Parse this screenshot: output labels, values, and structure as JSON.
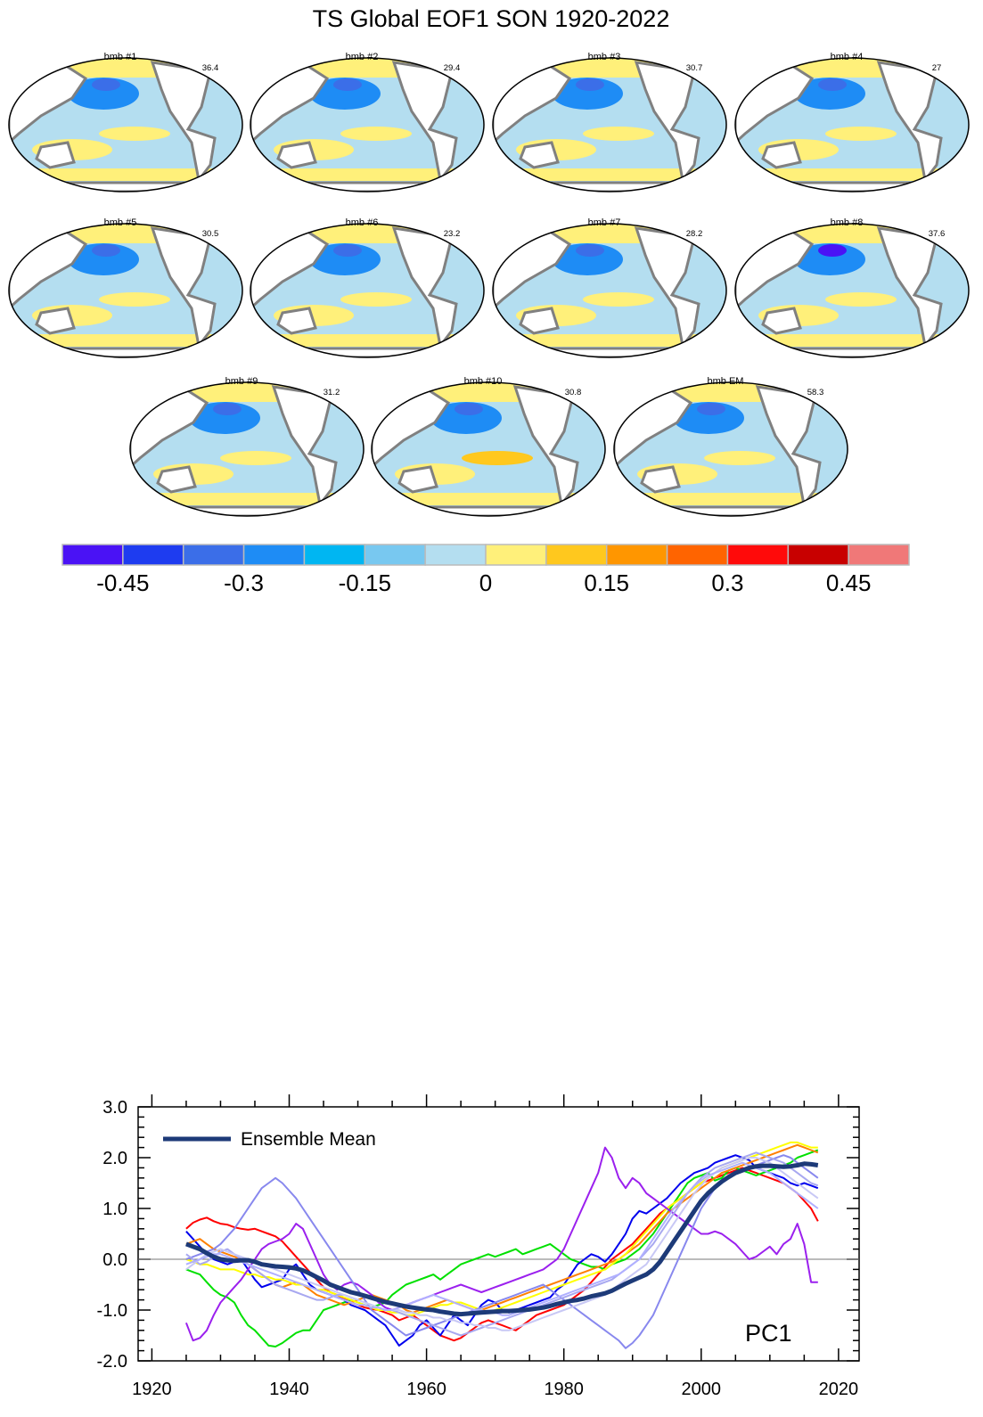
{
  "title": "TS Global EOF1 SON 1920-2022",
  "panels": [
    {
      "label": "bmb #1",
      "pct": "36.4"
    },
    {
      "label": "bmb #2",
      "pct": "29.4"
    },
    {
      "label": "bmb #3",
      "pct": "30.7"
    },
    {
      "label": "bmb #4",
      "pct": "27"
    },
    {
      "label": "bmb #5",
      "pct": "30.5"
    },
    {
      "label": "bmb #6",
      "pct": "23.2"
    },
    {
      "label": "bmb #7",
      "pct": "28.2"
    },
    {
      "label": "bmb #8",
      "pct": "37.6"
    },
    {
      "label": "bmb #9",
      "pct": "31.2"
    },
    {
      "label": "bmb #10",
      "pct": "30.8"
    },
    {
      "label": "bmb EM",
      "pct": "58.3"
    }
  ],
  "colorbar": {
    "colors": [
      "#4a12f5",
      "#1e3cf0",
      "#3b6ee8",
      "#1e8cf5",
      "#00b6f2",
      "#78c8f0",
      "#b4def0",
      "#fff07a",
      "#ffc81e",
      "#ff9600",
      "#ff6400",
      "#ff0a0a",
      "#c80000",
      "#f07878"
    ],
    "labels": [
      "-0.45",
      "-0.3",
      "-0.15",
      "0",
      "0.15",
      "0.3",
      "0.45"
    ]
  },
  "chart_data": {
    "type": "line",
    "title": "",
    "annotation": "PC1",
    "xlim": [
      1918,
      2023
    ],
    "ylim": [
      -2.0,
      3.0
    ],
    "xticks": [
      "1920",
      "1940",
      "1960",
      "1980",
      "2000",
      "2020"
    ],
    "yticks": [
      "-2.0",
      "-1.0",
      "0.0",
      "1.0",
      "2.0",
      "3.0"
    ],
    "legend": {
      "entry": "Ensemble Mean",
      "placement": "top-left"
    },
    "zero_line": true,
    "x": [
      1925,
      1926,
      1927,
      1928,
      1929,
      1930,
      1931,
      1932,
      1933,
      1934,
      1935,
      1936,
      1937,
      1938,
      1939,
      1940,
      1941,
      1942,
      1943,
      1944,
      1945,
      1946,
      1947,
      1948,
      1949,
      1950,
      1951,
      1952,
      1953,
      1954,
      1955,
      1956,
      1957,
      1958,
      1959,
      1960,
      1961,
      1962,
      1963,
      1964,
      1965,
      1966,
      1967,
      1968,
      1969,
      1970,
      1971,
      1972,
      1973,
      1974,
      1975,
      1976,
      1977,
      1978,
      1979,
      1980,
      1981,
      1982,
      1983,
      1984,
      1985,
      1986,
      1987,
      1988,
      1989,
      1990,
      1991,
      1992,
      1993,
      1994,
      1995,
      1996,
      1997,
      1998,
      1999,
      2000,
      2001,
      2002,
      2003,
      2004,
      2005,
      2006,
      2007,
      2008,
      2009,
      2010,
      2011,
      2012,
      2013,
      2014,
      2015,
      2016,
      2017
    ],
    "series": [
      {
        "color": "#ff0000",
        "values": [
          0.6,
          0.72,
          0.78,
          0.82,
          0.75,
          0.7,
          0.68,
          0.63,
          0.6,
          0.58,
          0.6,
          0.55,
          0.5,
          0.45,
          0.35,
          0.2,
          0.05,
          -0.1,
          -0.25,
          -0.4,
          -0.55,
          -0.65,
          -0.7,
          -0.78,
          -0.85,
          -0.9,
          -0.95,
          -0.98,
          -1.0,
          -1.05,
          -1.1,
          -1.2,
          -1.15,
          -1.1,
          -1.2,
          -1.3,
          -1.4,
          -1.5,
          -1.55,
          -1.6,
          -1.55,
          -1.45,
          -1.35,
          -1.25,
          -1.2,
          -1.25,
          -1.3,
          -1.35,
          -1.4,
          -1.3,
          -1.2,
          -1.1,
          -1.05,
          -1.0,
          -0.95,
          -0.9,
          -0.8,
          -0.7,
          -0.6,
          -0.45,
          -0.3,
          -0.15,
          0.0,
          0.1,
          0.2,
          0.3,
          0.45,
          0.6,
          0.75,
          0.9,
          1.0,
          1.1,
          1.2,
          1.3,
          1.4,
          1.5,
          1.55,
          1.6,
          1.65,
          1.7,
          1.75,
          1.8,
          1.75,
          1.7,
          1.65,
          1.6,
          1.55,
          1.5,
          1.4,
          1.3,
          1.15,
          1.0,
          0.75
        ]
      },
      {
        "color": "#00e000",
        "values": [
          -0.2,
          -0.25,
          -0.3,
          -0.45,
          -0.6,
          -0.7,
          -0.75,
          -0.85,
          -1.1,
          -1.3,
          -1.4,
          -1.55,
          -1.7,
          -1.72,
          -1.65,
          -1.55,
          -1.45,
          -1.4,
          -1.4,
          -1.2,
          -1.0,
          -0.95,
          -0.9,
          -0.85,
          -0.8,
          -0.85,
          -0.9,
          -0.95,
          -0.9,
          -0.85,
          -0.7,
          -0.6,
          -0.5,
          -0.45,
          -0.4,
          -0.35,
          -0.3,
          -0.4,
          -0.3,
          -0.2,
          -0.1,
          -0.05,
          0.0,
          0.05,
          0.1,
          0.05,
          0.1,
          0.15,
          0.2,
          0.1,
          0.15,
          0.2,
          0.25,
          0.3,
          0.2,
          0.1,
          0.0,
          -0.05,
          -0.1,
          -0.15,
          -0.15,
          -0.2,
          -0.1,
          -0.05,
          0.0,
          0.1,
          0.2,
          0.35,
          0.5,
          0.7,
          0.9,
          1.1,
          1.3,
          1.5,
          1.6,
          1.65,
          1.7,
          1.55,
          1.6,
          1.75,
          1.8,
          1.75,
          1.7,
          1.65,
          1.7,
          1.75,
          1.8,
          1.85,
          1.9,
          2.0,
          2.05,
          2.1,
          2.15
        ]
      },
      {
        "color": "#0000ee",
        "values": [
          0.55,
          0.4,
          0.25,
          0.1,
          0.0,
          -0.05,
          -0.1,
          -0.05,
          0.0,
          -0.2,
          -0.4,
          -0.55,
          -0.5,
          -0.45,
          -0.4,
          -0.2,
          -0.1,
          -0.3,
          -0.5,
          -0.6,
          -0.65,
          -0.7,
          -0.75,
          -0.8,
          -0.9,
          -0.95,
          -1.0,
          -1.1,
          -1.2,
          -1.3,
          -1.5,
          -1.7,
          -1.6,
          -1.5,
          -1.3,
          -1.2,
          -1.35,
          -1.5,
          -1.3,
          -1.1,
          -1.2,
          -1.3,
          -1.1,
          -0.9,
          -0.8,
          -0.85,
          -1.0,
          -1.05,
          -1.0,
          -0.95,
          -0.9,
          -0.85,
          -0.8,
          -0.75,
          -0.6,
          -0.5,
          -0.3,
          -0.1,
          0.0,
          0.1,
          0.05,
          -0.05,
          0.1,
          0.3,
          0.5,
          0.8,
          0.95,
          0.9,
          1.0,
          1.1,
          1.2,
          1.35,
          1.5,
          1.6,
          1.7,
          1.75,
          1.8,
          1.9,
          1.95,
          2.0,
          2.05,
          2.0,
          1.95,
          1.8,
          1.75,
          1.7,
          1.65,
          1.6,
          1.5,
          1.45,
          1.5,
          1.45,
          1.4
        ]
      },
      {
        "color": "#ff8000",
        "values": [
          0.3,
          0.35,
          0.4,
          0.3,
          0.2,
          0.15,
          0.1,
          0.05,
          0.0,
          -0.1,
          -0.2,
          -0.3,
          -0.4,
          -0.5,
          -0.55,
          -0.5,
          -0.45,
          -0.5,
          -0.6,
          -0.7,
          -0.75,
          -0.8,
          -0.85,
          -0.9,
          -0.85,
          -0.8,
          -0.75,
          -0.7,
          -0.75,
          -0.8,
          -0.85,
          -0.9,
          -1.0,
          -1.05,
          -1.0,
          -0.95,
          -0.9,
          -0.85,
          -0.8,
          -0.85,
          -0.9,
          -0.95,
          -1.0,
          -1.0,
          -0.95,
          -0.9,
          -0.85,
          -0.8,
          -0.75,
          -0.7,
          -0.65,
          -0.6,
          -0.55,
          -0.5,
          -0.45,
          -0.4,
          -0.35,
          -0.3,
          -0.25,
          -0.2,
          -0.15,
          -0.1,
          -0.05,
          0.0,
          0.1,
          0.2,
          0.3,
          0.45,
          0.6,
          0.75,
          0.9,
          1.0,
          1.1,
          1.2,
          1.3,
          1.4,
          1.5,
          1.6,
          1.7,
          1.75,
          1.8,
          1.85,
          1.9,
          1.95,
          2.0,
          2.05,
          2.1,
          2.15,
          2.2,
          2.25,
          2.2,
          2.15,
          2.1
        ]
      },
      {
        "color": "#ffff00",
        "values": [
          0.0,
          -0.05,
          -0.1,
          -0.1,
          -0.15,
          -0.2,
          -0.2,
          -0.2,
          -0.25,
          -0.3,
          -0.3,
          -0.35,
          -0.35,
          -0.4,
          -0.4,
          -0.45,
          -0.5,
          -0.5,
          -0.55,
          -0.6,
          -0.6,
          -0.65,
          -0.7,
          -0.75,
          -0.8,
          -0.85,
          -0.9,
          -0.95,
          -1.0,
          -1.0,
          -1.05,
          -1.05,
          -1.1,
          -1.1,
          -1.05,
          -1.0,
          -0.95,
          -0.9,
          -0.9,
          -0.85,
          -0.85,
          -0.9,
          -0.95,
          -1.0,
          -1.05,
          -1.0,
          -0.95,
          -0.9,
          -0.85,
          -0.8,
          -0.75,
          -0.7,
          -0.65,
          -0.6,
          -0.55,
          -0.5,
          -0.45,
          -0.4,
          -0.35,
          -0.3,
          -0.25,
          -0.2,
          -0.1,
          0.0,
          0.1,
          0.25,
          0.4,
          0.55,
          0.7,
          0.85,
          1.0,
          1.1,
          1.2,
          1.3,
          1.4,
          1.5,
          1.6,
          1.7,
          1.8,
          1.85,
          1.9,
          1.95,
          2.0,
          2.05,
          2.1,
          2.15,
          2.2,
          2.25,
          2.3,
          2.3,
          2.25,
          2.2,
          2.2
        ]
      },
      {
        "color": "#9b20ee",
        "values": [
          -1.25,
          -1.6,
          -1.55,
          -1.4,
          -1.1,
          -0.85,
          -0.7,
          -0.55,
          -0.4,
          -0.2,
          0.0,
          0.2,
          0.3,
          0.35,
          0.4,
          0.5,
          0.7,
          0.6,
          0.3,
          0.0,
          -0.3,
          -0.5,
          -0.6,
          -0.5,
          -0.45,
          -0.5,
          -0.6,
          -0.7,
          -0.85,
          -0.95,
          -1.0,
          -0.95,
          -0.9,
          -0.85,
          -0.8,
          -0.75,
          -0.7,
          -0.65,
          -0.6,
          -0.55,
          -0.5,
          -0.55,
          -0.6,
          -0.65,
          -0.6,
          -0.55,
          -0.5,
          -0.45,
          -0.4,
          -0.35,
          -0.3,
          -0.25,
          -0.2,
          -0.1,
          0.0,
          0.2,
          0.5,
          0.8,
          1.1,
          1.4,
          1.7,
          2.2,
          2.0,
          1.6,
          1.4,
          1.6,
          1.5,
          1.3,
          1.2,
          1.1,
          1.0,
          0.9,
          0.8,
          0.7,
          0.6,
          0.5,
          0.5,
          0.55,
          0.5,
          0.4,
          0.3,
          0.15,
          0.0,
          0.05,
          0.15,
          0.25,
          0.1,
          0.3,
          0.4,
          0.7,
          0.3,
          -0.45,
          -0.45
        ]
      },
      {
        "color": "#8888ee",
        "values": [
          0.0,
          0.05,
          0.1,
          0.15,
          0.2,
          0.3,
          0.45,
          0.6,
          0.8,
          1.0,
          1.2,
          1.4,
          1.5,
          1.6,
          1.5,
          1.35,
          1.2,
          1.0,
          0.8,
          0.6,
          0.4,
          0.2,
          0.0,
          -0.2,
          -0.4,
          -0.6,
          -0.8,
          -1.0,
          -1.1,
          -1.2,
          -1.3,
          -1.4,
          -1.5,
          -1.45,
          -1.4,
          -1.35,
          -1.3,
          -1.25,
          -1.2,
          -1.15,
          -1.1,
          -1.05,
          -1.0,
          -0.95,
          -0.9,
          -0.85,
          -0.8,
          -0.75,
          -0.7,
          -0.65,
          -0.6,
          -0.55,
          -0.5,
          -0.6,
          -0.7,
          -0.8,
          -0.9,
          -1.0,
          -1.1,
          -1.2,
          -1.3,
          -1.4,
          -1.5,
          -1.6,
          -1.75,
          -1.65,
          -1.5,
          -1.3,
          -1.1,
          -0.8,
          -0.5,
          -0.2,
          0.1,
          0.4,
          0.7,
          1.0,
          1.2,
          1.4,
          1.55,
          1.65,
          1.7,
          1.75,
          1.8,
          1.85,
          1.9,
          1.95,
          2.0,
          2.05,
          2.0,
          1.9,
          1.8,
          1.7,
          1.6
        ]
      },
      {
        "color": "#a8a8f0",
        "values": [
          0.1,
          0.0,
          -0.1,
          -0.05,
          0.05,
          0.15,
          0.2,
          0.1,
          0.0,
          -0.1,
          -0.2,
          -0.3,
          -0.4,
          -0.5,
          -0.55,
          -0.6,
          -0.65,
          -0.7,
          -0.75,
          -0.8,
          -0.8,
          -0.75,
          -0.7,
          -0.7,
          -0.75,
          -0.8,
          -0.85,
          -0.9,
          -0.95,
          -1.0,
          -1.0,
          -1.05,
          -1.1,
          -1.15,
          -1.2,
          -1.25,
          -1.3,
          -1.35,
          -1.4,
          -1.45,
          -1.5,
          -1.45,
          -1.4,
          -1.35,
          -1.3,
          -1.25,
          -1.2,
          -1.15,
          -1.1,
          -1.05,
          -1.0,
          -0.95,
          -0.9,
          -0.85,
          -0.8,
          -0.75,
          -0.7,
          -0.65,
          -0.6,
          -0.55,
          -0.5,
          -0.45,
          -0.4,
          -0.3,
          -0.2,
          -0.1,
          0.0,
          0.15,
          0.3,
          0.5,
          0.7,
          0.9,
          1.1,
          1.3,
          1.45,
          1.6,
          1.7,
          1.8,
          1.85,
          1.9,
          1.95,
          2.0,
          2.05,
          2.1,
          2.05,
          2.0,
          1.95,
          1.9,
          1.8,
          1.7,
          1.6,
          1.5,
          1.45
        ]
      },
      {
        "color": "#c8c8f5",
        "values": [
          -0.2,
          -0.1,
          0.0,
          0.1,
          0.15,
          0.2,
          0.15,
          0.1,
          0.05,
          0.0,
          -0.05,
          -0.1,
          -0.15,
          -0.2,
          -0.25,
          -0.3,
          -0.35,
          -0.4,
          -0.45,
          -0.5,
          -0.55,
          -0.6,
          -0.65,
          -0.7,
          -0.75,
          -0.8,
          -0.85,
          -0.9,
          -0.95,
          -1.0,
          -1.0,
          -1.0,
          -1.05,
          -1.05,
          -1.1,
          -1.1,
          -1.15,
          -1.15,
          -1.2,
          -1.2,
          -1.25,
          -1.25,
          -1.3,
          -1.3,
          -1.35,
          -1.35,
          -1.4,
          -1.4,
          -1.35,
          -1.3,
          -1.25,
          -1.2,
          -1.15,
          -1.1,
          -1.05,
          -1.0,
          -0.95,
          -0.9,
          -0.85,
          -0.8,
          -0.75,
          -0.7,
          -0.6,
          -0.5,
          -0.4,
          -0.3,
          -0.2,
          -0.1,
          0.1,
          0.3,
          0.5,
          0.7,
          0.9,
          1.1,
          1.3,
          1.45,
          1.6,
          1.7,
          1.8,
          1.85,
          1.9,
          1.95,
          2.0,
          2.0,
          1.95,
          1.9,
          1.8,
          1.7,
          1.6,
          1.5,
          1.4,
          1.3,
          1.2
        ]
      },
      {
        "color": "#b0b0ff",
        "values": [
          -0.1,
          -0.05,
          0.0,
          0.05,
          0.1,
          0.1,
          0.05,
          0.0,
          -0.05,
          -0.1,
          -0.15,
          -0.2,
          -0.25,
          -0.3,
          -0.35,
          -0.4,
          -0.45,
          -0.5,
          -0.55,
          -0.6,
          -0.65,
          -0.7,
          -0.75,
          -0.8,
          -0.85,
          -0.9,
          -0.9,
          -0.95,
          -0.95,
          -1.0,
          -1.0,
          -0.95,
          -0.9,
          -0.85,
          -0.8,
          -0.75,
          -0.7,
          -0.75,
          -0.8,
          -0.85,
          -0.9,
          -0.95,
          -1.0,
          -1.0,
          -1.05,
          -1.05,
          -1.1,
          -1.1,
          -1.05,
          -1.0,
          -0.95,
          -0.9,
          -0.85,
          -0.8,
          -0.75,
          -0.7,
          -0.65,
          -0.6,
          -0.55,
          -0.5,
          -0.45,
          -0.4,
          -0.35,
          -0.3,
          -0.2,
          -0.1,
          0.0,
          0.2,
          0.4,
          0.6,
          0.8,
          1.0,
          1.15,
          1.3,
          1.45,
          1.55,
          1.65,
          1.7,
          1.75,
          1.8,
          1.85,
          1.9,
          1.85,
          1.8,
          1.75,
          1.7,
          1.6,
          1.5,
          1.4,
          1.3,
          1.2,
          1.1,
          1.0
        ]
      }
    ],
    "ensemble_mean": {
      "name": "Ensemble Mean",
      "color": "#1d3a78",
      "values": [
        0.3,
        0.25,
        0.2,
        0.12,
        0.05,
        0.0,
        -0.02,
        -0.03,
        -0.02,
        -0.02,
        -0.05,
        -0.1,
        -0.12,
        -0.14,
        -0.15,
        -0.16,
        -0.18,
        -0.22,
        -0.28,
        -0.35,
        -0.42,
        -0.5,
        -0.55,
        -0.6,
        -0.65,
        -0.68,
        -0.72,
        -0.76,
        -0.8,
        -0.84,
        -0.87,
        -0.9,
        -0.93,
        -0.95,
        -0.97,
        -0.99,
        -1.0,
        -1.03,
        -1.05,
        -1.07,
        -1.08,
        -1.07,
        -1.06,
        -1.05,
        -1.04,
        -1.03,
        -1.02,
        -1.02,
        -1.01,
        -1.0,
        -0.99,
        -0.97,
        -0.95,
        -0.92,
        -0.88,
        -0.85,
        -0.82,
        -0.8,
        -0.77,
        -0.73,
        -0.7,
        -0.67,
        -0.62,
        -0.55,
        -0.48,
        -0.42,
        -0.36,
        -0.3,
        -0.2,
        -0.05,
        0.15,
        0.35,
        0.55,
        0.75,
        0.95,
        1.15,
        1.3,
        1.42,
        1.53,
        1.62,
        1.7,
        1.75,
        1.8,
        1.83,
        1.84,
        1.84,
        1.83,
        1.82,
        1.83,
        1.85,
        1.88,
        1.87,
        1.85
      ]
    }
  }
}
